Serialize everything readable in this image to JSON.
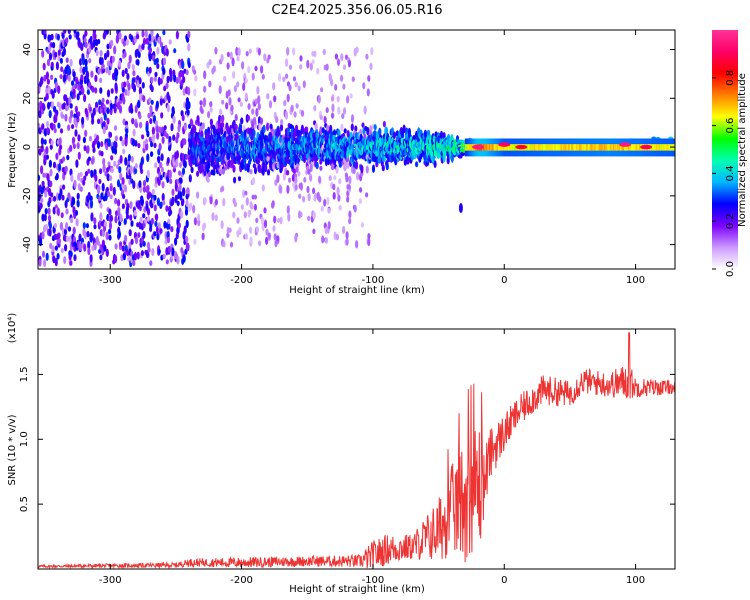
{
  "title": "C2E4.2025.356.06.05.R16",
  "chart_data": [
    {
      "type": "heatmap",
      "title": "C2E4.2025.356.06.05.R16",
      "xlabel": "Height of straight line (km)",
      "ylabel": "Frequency (Hz)",
      "xlim": [
        -355,
        130
      ],
      "ylim": [
        -50,
        48
      ],
      "xticks": [
        -300,
        -200,
        -100,
        0,
        100
      ],
      "xtick_labels": [
        "-300",
        "-200",
        "-100",
        "0",
        "100"
      ],
      "yticks": [
        -40,
        -20,
        0,
        20,
        40
      ],
      "ytick_labels": [
        "-40",
        "-20",
        "0",
        "20",
        "40"
      ],
      "colorbar": {
        "label": "Normalized spectral amplitude",
        "range": [
          0,
          1
        ],
        "ticks": [
          0.0,
          0.2,
          0.4,
          0.6,
          0.8
        ],
        "tick_labels": [
          "0.0",
          "0.2",
          "0.4",
          "0.6",
          "0.8"
        ],
        "colors": [
          "#ffffff",
          "#cc99ff",
          "#7b00ff",
          "#0000ff",
          "#00b7ff",
          "#00ffb0",
          "#00ff00",
          "#ffff00",
          "#ff8000",
          "#ff0000",
          "#ff0066",
          "#ff3399"
        ]
      },
      "description_band": "Spectral energy centered near 0 Hz; broad scattered energy for heights below -240 km, narrowing band from -240 to -30 km, narrow high-amplitude band from -30 to 130 km",
      "band_profile": [
        {
          "x": -355,
          "halfwidth": 45,
          "amp": 0.1
        },
        {
          "x": -260,
          "halfwidth": 40,
          "amp": 0.18
        },
        {
          "x": -250,
          "halfwidth": 12,
          "amp": 0.35
        },
        {
          "x": -150,
          "halfwidth": 9,
          "amp": 0.42
        },
        {
          "x": -60,
          "halfwidth": 7,
          "amp": 0.5
        },
        {
          "x": -35,
          "halfwidth": 4,
          "amp": 0.55
        },
        {
          "x": -20,
          "halfwidth": 2,
          "amp": 0.85
        },
        {
          "x": 0,
          "halfwidth": 2,
          "amp": 0.7
        },
        {
          "x": 80,
          "halfwidth": 2.5,
          "amp": 0.75
        },
        {
          "x": 130,
          "halfwidth": 3,
          "amp": 0.7
        }
      ],
      "hot_spots": [
        {
          "x": -20,
          "y": 0,
          "amp": 0.95
        },
        {
          "x": 0,
          "y": 1,
          "amp": 0.9
        },
        {
          "x": 13,
          "y": 0,
          "amp": 0.85
        },
        {
          "x": 92,
          "y": 1,
          "amp": 0.95
        },
        {
          "x": 108,
          "y": 0,
          "amp": 0.9
        }
      ],
      "outliers": [
        {
          "x": -33,
          "y": -25,
          "amp": 0.25
        }
      ]
    },
    {
      "type": "line",
      "xlabel": "Height of straight line (km)",
      "ylabel": "SNR (10 * v/v)",
      "y_scale_label": "(x10⁴)",
      "xlim": [
        -355,
        130
      ],
      "ylim": [
        0,
        1.85
      ],
      "xticks": [
        -300,
        -200,
        -100,
        0,
        100
      ],
      "xtick_labels": [
        "-300",
        "-200",
        "-100",
        "0",
        "100"
      ],
      "yticks": [
        0.5,
        1.0,
        1.5
      ],
      "ytick_labels": [
        "0.5",
        "1.0",
        "1.5"
      ],
      "series": [
        {
          "name": "SNR",
          "color": "#ee3333",
          "x_profile": [
            -355,
            -250,
            -240,
            -200,
            -150,
            -110,
            -100,
            -90,
            -70,
            -50,
            -40,
            -30,
            -25,
            -18,
            -15,
            -10,
            0,
            10,
            20,
            30,
            50,
            60,
            80,
            95,
            100,
            130
          ],
          "y_profile": [
            0.02,
            0.03,
            0.05,
            0.05,
            0.06,
            0.06,
            0.1,
            0.15,
            0.17,
            0.3,
            0.45,
            0.55,
            0.62,
            0.65,
            0.7,
            0.9,
            1.05,
            1.2,
            1.3,
            1.38,
            1.35,
            1.45,
            1.42,
            1.45,
            1.4,
            1.4
          ],
          "noise_profile": [
            0.01,
            0.02,
            0.03,
            0.04,
            0.04,
            0.05,
            0.12,
            0.12,
            0.1,
            0.25,
            0.35,
            0.5,
            0.5,
            0.5,
            0.25,
            0.2,
            0.15,
            0.12,
            0.12,
            0.12,
            0.1,
            0.1,
            0.1,
            0.15,
            0.08,
            0.05
          ],
          "peak_max": {
            "x": 95,
            "y": 1.82
          }
        }
      ]
    }
  ]
}
